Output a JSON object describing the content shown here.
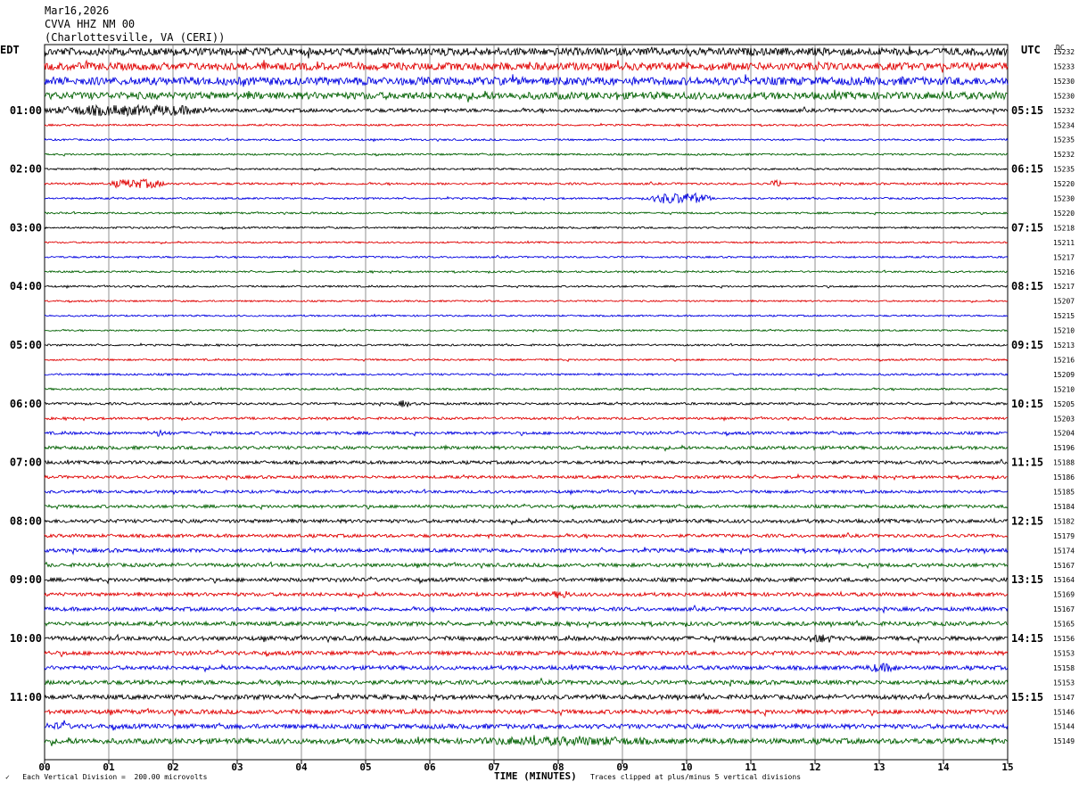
{
  "header": {
    "date": "Mar16,2026",
    "station": "CVVA HHZ NM 00",
    "location": "(Charlottesville, VA (CERI))"
  },
  "left_timezone": "EDT",
  "right_timezone": "UTC",
  "dc_label": "DC",
  "footer": {
    "scale": "Each Vertical Division =  200.00 microvolts",
    "clip_note": "Traces clipped at plus/minus 5 vertical divisions",
    "corner_mark": "✓"
  },
  "chart_data": {
    "type": "line",
    "title": "",
    "xlabel": "TIME (MINUTES)",
    "ylabel": "",
    "xlim": [
      0,
      15
    ],
    "x_tick_labels": [
      "00",
      "01",
      "02",
      "03",
      "04",
      "05",
      "06",
      "07",
      "08",
      "09",
      "10",
      "11",
      "12",
      "13",
      "14",
      "15"
    ],
    "trace_colors": [
      "#000000",
      "#e00000",
      "#0000e0",
      "#006000"
    ],
    "grid": true,
    "local_hour_labels": [
      "01:00",
      "02:00",
      "03:00",
      "04:00",
      "05:00",
      "06:00",
      "07:00",
      "08:00",
      "09:00",
      "10:00",
      "11:00"
    ],
    "utc_hour_labels": [
      "05:15",
      "06:15",
      "07:15",
      "08:15",
      "09:15",
      "10:15",
      "11:15",
      "12:15",
      "13:15",
      "14:15",
      "15:15"
    ],
    "dc_offsets": [
      15232,
      15233,
      15230,
      15230,
      15232,
      15234,
      15235,
      15232,
      15235,
      15220,
      15230,
      15220,
      15218,
      15211,
      15217,
      15216,
      15217,
      15207,
      15215,
      15210,
      15213,
      15216,
      15209,
      15210,
      15205,
      15203,
      15204,
      15196,
      15188,
      15186,
      15185,
      15184,
      15182,
      15179,
      15174,
      15167,
      15164,
      15169,
      15167,
      15165,
      15156,
      15153,
      15158,
      15153,
      15147,
      15146,
      15144,
      15149
    ],
    "trace_amplitude": [
      4.2,
      4.2,
      4.4,
      4.0,
      2.0,
      1.0,
      1.0,
      1.0,
      1.0,
      1.2,
      1.0,
      1.0,
      1.0,
      0.9,
      1.0,
      1.0,
      1.0,
      0.9,
      0.9,
      0.9,
      1.0,
      1.0,
      1.1,
      1.1,
      1.3,
      1.3,
      1.6,
      1.8,
      1.8,
      1.6,
      1.6,
      1.7,
      2.0,
      1.8,
      2.1,
      2.0,
      2.1,
      2.0,
      2.1,
      2.2,
      2.4,
      2.2,
      2.2,
      2.4,
      2.5,
      2.4,
      2.6,
      3.0
    ],
    "events": [
      {
        "trace": 4,
        "start_min": 0.0,
        "end_min": 2.7,
        "amplitude": 6.0
      },
      {
        "trace": 9,
        "start_min": 1.0,
        "end_min": 1.9,
        "amplitude": 5.0
      },
      {
        "trace": 9,
        "start_min": 11.3,
        "end_min": 11.5,
        "amplitude": 4.0
      },
      {
        "trace": 10,
        "start_min": 9.4,
        "end_min": 10.4,
        "amplitude": 6.0
      },
      {
        "trace": 24,
        "start_min": 5.5,
        "end_min": 5.7,
        "amplitude": 4.0
      },
      {
        "trace": 26,
        "start_min": 1.7,
        "end_min": 1.9,
        "amplitude": 4.0
      },
      {
        "trace": 37,
        "start_min": 7.9,
        "end_min": 8.2,
        "amplitude": 4.5
      },
      {
        "trace": 40,
        "start_min": 11.9,
        "end_min": 12.3,
        "amplitude": 5.0
      },
      {
        "trace": 42,
        "start_min": 12.8,
        "end_min": 13.3,
        "amplitude": 5.0
      },
      {
        "trace": 46,
        "start_min": 0.1,
        "end_min": 0.4,
        "amplitude": 4.5
      },
      {
        "trace": 47,
        "start_min": 6.7,
        "end_min": 9.5,
        "amplitude": 5.0
      }
    ]
  }
}
